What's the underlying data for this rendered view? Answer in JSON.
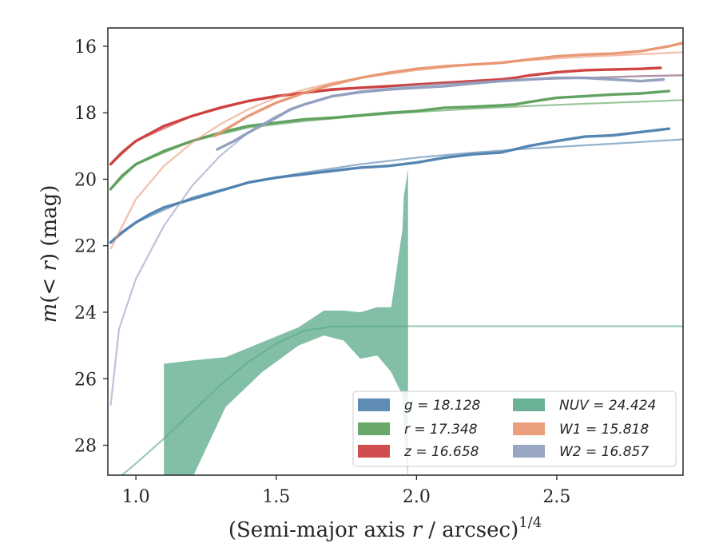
{
  "chart_data": {
    "type": "line",
    "xlabel": "(Semi-major axis r / arcsec)^1/4",
    "ylabel": "m(< r) (mag)",
    "xlim": [
      0.9,
      2.95
    ],
    "ylim": [
      28.9,
      15.45
    ],
    "y_inverted": true,
    "x_ticks": [
      "1.0",
      "1.5",
      "2.0",
      "2.5"
    ],
    "y_ticks": [
      "16",
      "18",
      "20",
      "22",
      "24",
      "26",
      "28"
    ],
    "grid": false,
    "legend_position": "lower-right",
    "series": [
      {
        "name": "g = 18.128",
        "color": "#4c7fad",
        "x": [
          0.91,
          0.95,
          1.0,
          1.05,
          1.1,
          1.2,
          1.3,
          1.4,
          1.5,
          1.6,
          1.7,
          1.8,
          1.9,
          2.0,
          2.1,
          2.2,
          2.3,
          2.35,
          2.4,
          2.5,
          2.6,
          2.7,
          2.8,
          2.9
        ],
        "y": [
          21.9,
          21.6,
          21.3,
          21.05,
          20.85,
          20.6,
          20.35,
          20.1,
          19.95,
          19.85,
          19.75,
          19.65,
          19.6,
          19.5,
          19.35,
          19.25,
          19.2,
          19.1,
          19.0,
          18.85,
          18.72,
          18.68,
          18.58,
          18.48
        ],
        "model_x": [
          0.91,
          1.0,
          1.2,
          1.4,
          1.6,
          1.8,
          2.0,
          2.2,
          2.4,
          2.6,
          2.8,
          2.95
        ],
        "model_y": [
          21.9,
          21.3,
          20.55,
          20.1,
          19.8,
          19.55,
          19.35,
          19.2,
          19.08,
          18.98,
          18.88,
          18.8
        ]
      },
      {
        "name": "r = 17.348",
        "color": "#5a9e5a",
        "x": [
          0.91,
          0.95,
          1.0,
          1.1,
          1.2,
          1.3,
          1.4,
          1.5,
          1.6,
          1.7,
          1.8,
          1.9,
          2.0,
          2.05,
          2.1,
          2.2,
          2.3,
          2.35,
          2.4,
          2.5,
          2.6,
          2.7,
          2.8,
          2.9
        ],
        "y": [
          20.3,
          19.9,
          19.55,
          19.15,
          18.85,
          18.6,
          18.4,
          18.3,
          18.2,
          18.15,
          18.08,
          18.0,
          17.95,
          17.9,
          17.85,
          17.82,
          17.78,
          17.75,
          17.68,
          17.55,
          17.5,
          17.45,
          17.42,
          17.35
        ],
        "model_x": [
          0.91,
          1.0,
          1.2,
          1.4,
          1.6,
          1.8,
          2.0,
          2.2,
          2.4,
          2.6,
          2.8,
          2.95
        ],
        "model_y": [
          20.3,
          19.55,
          18.85,
          18.45,
          18.25,
          18.1,
          17.98,
          17.88,
          17.8,
          17.73,
          17.67,
          17.62
        ]
      },
      {
        "name": "z = 16.658",
        "color": "#cc3b3b",
        "x": [
          0.91,
          0.95,
          1.0,
          1.1,
          1.2,
          1.3,
          1.4,
          1.5,
          1.6,
          1.7,
          1.8,
          1.9,
          2.0,
          2.1,
          2.2,
          2.3,
          2.35,
          2.4,
          2.5,
          2.6,
          2.7,
          2.8,
          2.87
        ],
        "y": [
          19.55,
          19.2,
          18.85,
          18.4,
          18.1,
          17.85,
          17.65,
          17.5,
          17.4,
          17.3,
          17.25,
          17.2,
          17.15,
          17.1,
          17.05,
          17.0,
          16.95,
          16.88,
          16.78,
          16.72,
          16.7,
          16.68,
          16.65
        ],
        "model_x": [
          0.91,
          1.0,
          1.2,
          1.4,
          1.6,
          1.8,
          2.0,
          2.2,
          2.4,
          2.6,
          2.8,
          2.95
        ],
        "model_y": [
          19.55,
          18.85,
          18.1,
          17.65,
          17.4,
          17.25,
          17.15,
          17.07,
          17.0,
          16.95,
          16.9,
          16.87
        ]
      },
      {
        "name": "NUV = 24.424",
        "color": "#5aa98a",
        "band_x": [
          1.1,
          1.2,
          1.32,
          1.45,
          1.58,
          1.67,
          1.74,
          1.8,
          1.86,
          1.91,
          1.95,
          1.955,
          1.97
        ],
        "band_upper": [
          25.55,
          25.45,
          25.35,
          24.9,
          24.45,
          23.95,
          23.95,
          24.0,
          23.85,
          23.85,
          21.5,
          20.5,
          19.7
        ],
        "band_lower": [
          29.0,
          29.0,
          26.85,
          25.8,
          25.0,
          24.7,
          24.85,
          25.4,
          25.3,
          25.8,
          26.5,
          27.5,
          29.0
        ],
        "model_x": [
          0.95,
          1.0,
          1.1,
          1.2,
          1.3,
          1.4,
          1.5,
          1.6,
          1.7,
          2.0,
          2.5,
          2.95
        ],
        "model_y": [
          28.9,
          28.55,
          27.8,
          27.0,
          26.2,
          25.5,
          24.95,
          24.55,
          24.43,
          24.42,
          24.42,
          24.42
        ]
      },
      {
        "name": "W1 = 15.818",
        "color": "#e8956f",
        "x": [
          1.28,
          1.4,
          1.5,
          1.6,
          1.7,
          1.8,
          1.9,
          2.0,
          2.1,
          2.2,
          2.3,
          2.4,
          2.5,
          2.6,
          2.7,
          2.8,
          2.9,
          2.95
        ],
        "y": [
          18.7,
          18.1,
          17.7,
          17.4,
          17.15,
          16.95,
          16.8,
          16.68,
          16.6,
          16.55,
          16.5,
          16.4,
          16.3,
          16.25,
          16.22,
          16.15,
          16.0,
          15.9
        ],
        "model_x": [
          0.91,
          1.0,
          1.1,
          1.2,
          1.3,
          1.4,
          1.5,
          1.6,
          1.7,
          1.8,
          2.0,
          2.2,
          2.4,
          2.6,
          2.8,
          2.95
        ],
        "model_y": [
          22.1,
          20.6,
          19.6,
          18.9,
          18.35,
          17.9,
          17.55,
          17.3,
          17.1,
          16.95,
          16.72,
          16.55,
          16.42,
          16.32,
          16.24,
          16.18
        ]
      },
      {
        "name": "W2 = 16.857",
        "color": "#8e9cbd",
        "x": [
          1.29,
          1.35,
          1.4,
          1.5,
          1.55,
          1.6,
          1.7,
          1.8,
          1.9,
          2.0,
          2.1,
          2.2,
          2.3,
          2.4,
          2.5,
          2.6,
          2.7,
          2.8,
          2.88
        ],
        "y": [
          19.1,
          18.85,
          18.6,
          18.15,
          17.9,
          17.75,
          17.5,
          17.38,
          17.3,
          17.25,
          17.2,
          17.12,
          17.05,
          17.0,
          16.95,
          16.95,
          17.0,
          17.05,
          17.0
        ],
        "model_x": [
          0.91,
          0.94,
          1.0,
          1.1,
          1.2,
          1.3,
          1.4,
          1.5,
          1.6,
          1.7,
          1.8,
          2.0,
          2.2,
          2.4,
          2.6,
          2.8,
          2.95
        ],
        "model_y": [
          26.8,
          24.5,
          23.0,
          21.4,
          20.2,
          19.3,
          18.6,
          18.1,
          17.75,
          17.5,
          17.35,
          17.18,
          17.08,
          17.0,
          16.95,
          16.9,
          16.88
        ]
      }
    ]
  }
}
